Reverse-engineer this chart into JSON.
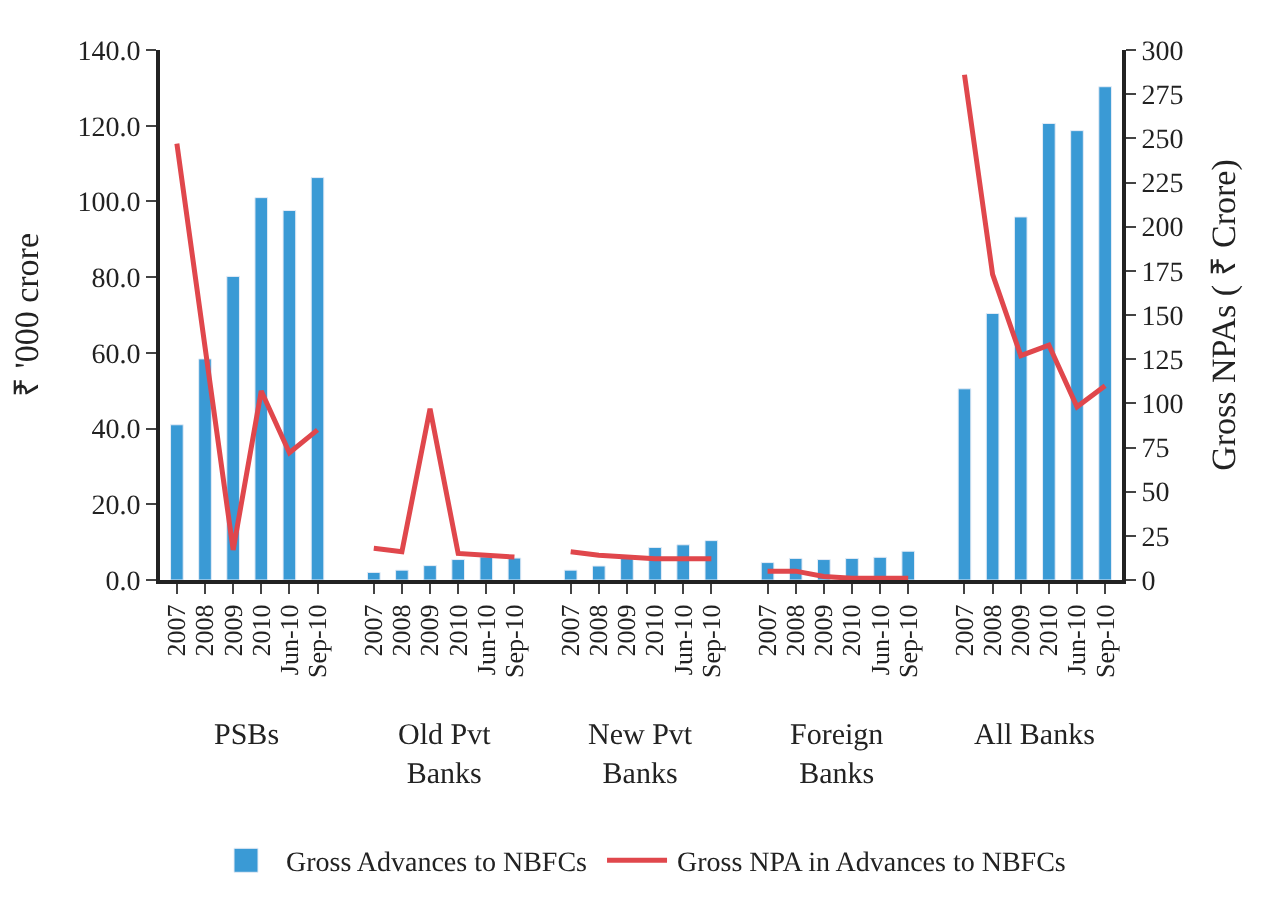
{
  "chart_data": {
    "type": "bar",
    "categories": [
      "2007",
      "2008",
      "2009",
      "2010",
      "Jun-10",
      "Sep-10",
      null,
      "2007",
      "2008",
      "2009",
      "2010",
      "Jun-10",
      "Sep-10",
      null,
      "2007",
      "2008",
      "2009",
      "2010",
      "Jun-10",
      "Sep-10",
      null,
      "2007",
      "2008",
      "2009",
      "2010",
      "Jun-10",
      "Sep-10",
      null,
      "2007",
      "2008",
      "2009",
      "2010",
      "Jun-10",
      "Sep-10"
    ],
    "series": [
      {
        "name": "Gross Advances to NBFCs",
        "color": "#3a9ad5",
        "values": [
          41.0,
          58.4,
          80.2,
          101.0,
          97.6,
          106.3,
          null,
          2.0,
          2.6,
          3.8,
          5.4,
          6.1,
          5.8,
          null,
          2.6,
          3.7,
          6.3,
          8.6,
          9.3,
          10.4,
          null,
          4.6,
          5.7,
          5.4,
          5.7,
          6.0,
          7.6,
          null,
          50.5,
          70.4,
          95.9,
          120.6,
          118.7,
          130.3
        ]
      },
      {
        "name": "Gross NPA in Advances to NBFCs",
        "type": "line",
        "axis": "y2",
        "color": "#e0474c",
        "values": [
          247,
          132,
          17,
          107,
          72,
          85,
          null,
          18,
          16,
          97,
          15,
          14,
          13,
          null,
          16,
          14,
          13,
          12,
          12,
          12,
          null,
          5,
          5,
          2,
          1,
          1,
          1,
          null,
          286,
          173,
          127,
          133,
          98,
          110
        ]
      }
    ],
    "ylabel": "₹ '000 crore",
    "y2label": "Gross NPAs ( ₹ Crore)",
    "ylim": [
      0,
      140
    ],
    "yticks": [
      {
        "value": 0,
        "label": "0.0"
      },
      {
        "value": 20,
        "label": "20.0"
      },
      {
        "value": 40,
        "label": "40.0"
      },
      {
        "value": 60,
        "label": "60.0"
      },
      {
        "value": 80,
        "label": "80.0"
      },
      {
        "value": 100,
        "label": "100.0"
      },
      {
        "value": 120,
        "label": "120.0"
      },
      {
        "value": 140,
        "label": "140.0"
      }
    ],
    "y2lim": [
      0,
      300
    ],
    "y2ticks": [
      0,
      25,
      50,
      75,
      100,
      125,
      150,
      175,
      200,
      225,
      250,
      275,
      300
    ],
    "annotations": [
      "PSBs",
      "Old Pvt Banks",
      "New Pvt Banks",
      "Foreign Banks",
      "All Banks"
    ],
    "legend": "bottom",
    "marker": "none",
    "line_style": "solid"
  }
}
